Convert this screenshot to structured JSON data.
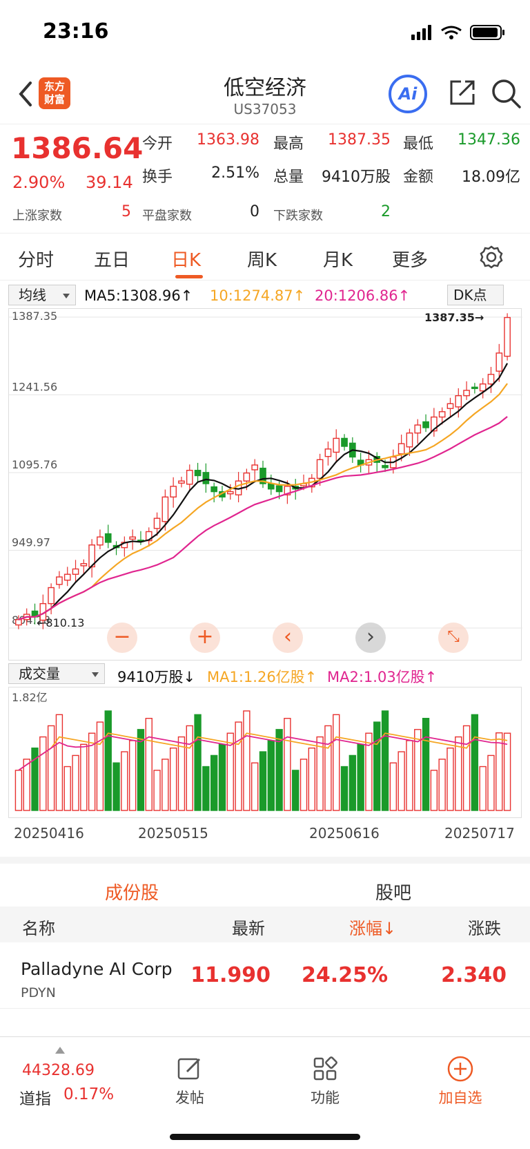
{
  "status_bar": {
    "time": "23:16"
  },
  "header": {
    "title": "低空经济",
    "code": "US37053",
    "logo_text": "东方财富",
    "ai_label": "Ai"
  },
  "quote": {
    "price": "1386.64",
    "change_pct": "2.90%",
    "change": "39.14",
    "open_label": "今开",
    "open": "1363.98",
    "high_label": "最高",
    "high": "1387.35",
    "low_label": "最低",
    "low": "1347.36",
    "turnover_label": "换手",
    "turnover": "2.51%",
    "volume_label": "总量",
    "volume": "9410万股",
    "amount_label": "金额",
    "amount": "18.09亿",
    "up_label": "上涨家数",
    "up": "5",
    "flat_label": "平盘家数",
    "flat": "0",
    "down_label": "下跌家数",
    "down": "2"
  },
  "period_tabs": [
    "分时",
    "五日",
    "日K",
    "周K",
    "月K",
    "更多"
  ],
  "ma_bar": {
    "selector": "均线",
    "ma5": "MA5:1308.96↑",
    "ma10": "10:1274.87↑",
    "ma20": "20:1206.86↑",
    "dk": "DK点"
  },
  "vol_bar": {
    "selector": "成交量",
    "vol": "9410万股↓",
    "ma1": "MA1:1.26亿股↑",
    "ma2": "MA2:1.03亿股↑"
  },
  "chart_data": {
    "type": "candlestick",
    "y_ticks": [
      "1387.35",
      "1241.56",
      "1095.76",
      "949.97",
      "804.18"
    ],
    "ylim": [
      804.18,
      1387.35
    ],
    "max_marker": "1387.35→",
    "min_marker": "810.13",
    "volume_max_label": "1.82亿",
    "x_ticks": [
      "20250416",
      "20250515",
      "20250616",
      "20250717"
    ],
    "colors": {
      "up": "#e8312f",
      "down": "#1a9a2a",
      "ma5": "#111111",
      "ma10": "#f5a623",
      "ma20": "#e0258f"
    },
    "close": [
      820,
      830,
      825,
      850,
      880,
      900,
      905,
      915,
      925,
      960,
      975,
      965,
      955,
      965,
      975,
      968,
      985,
      1010,
      1050,
      1070,
      1080,
      1100,
      1090,
      1075,
      1060,
      1050,
      1060,
      1080,
      1095,
      1110,
      1075,
      1065,
      1060,
      1070,
      1065,
      1075,
      1085,
      1120,
      1140,
      1160,
      1145,
      1125,
      1110,
      1120,
      1115,
      1105,
      1125,
      1150,
      1170,
      1185,
      1180,
      1200,
      1210,
      1225,
      1240,
      1250,
      1255,
      1262,
      1280,
      1320,
      1386.64
    ]
  },
  "section_tabs": [
    "成份股",
    "股吧"
  ],
  "table": {
    "headers": [
      "名称",
      "最新",
      "涨幅↓",
      "涨跌"
    ],
    "rows": [
      {
        "name": "Palladyne AI Corp",
        "code": "PDYN",
        "last": "11.990",
        "pct": "24.25%",
        "chg": "2.340"
      }
    ]
  },
  "bottom_bar": {
    "index_value": "44328.69",
    "index_name": "道指",
    "index_pct": "0.17%",
    "post": "发帖",
    "func": "功能",
    "add": "加自选"
  }
}
